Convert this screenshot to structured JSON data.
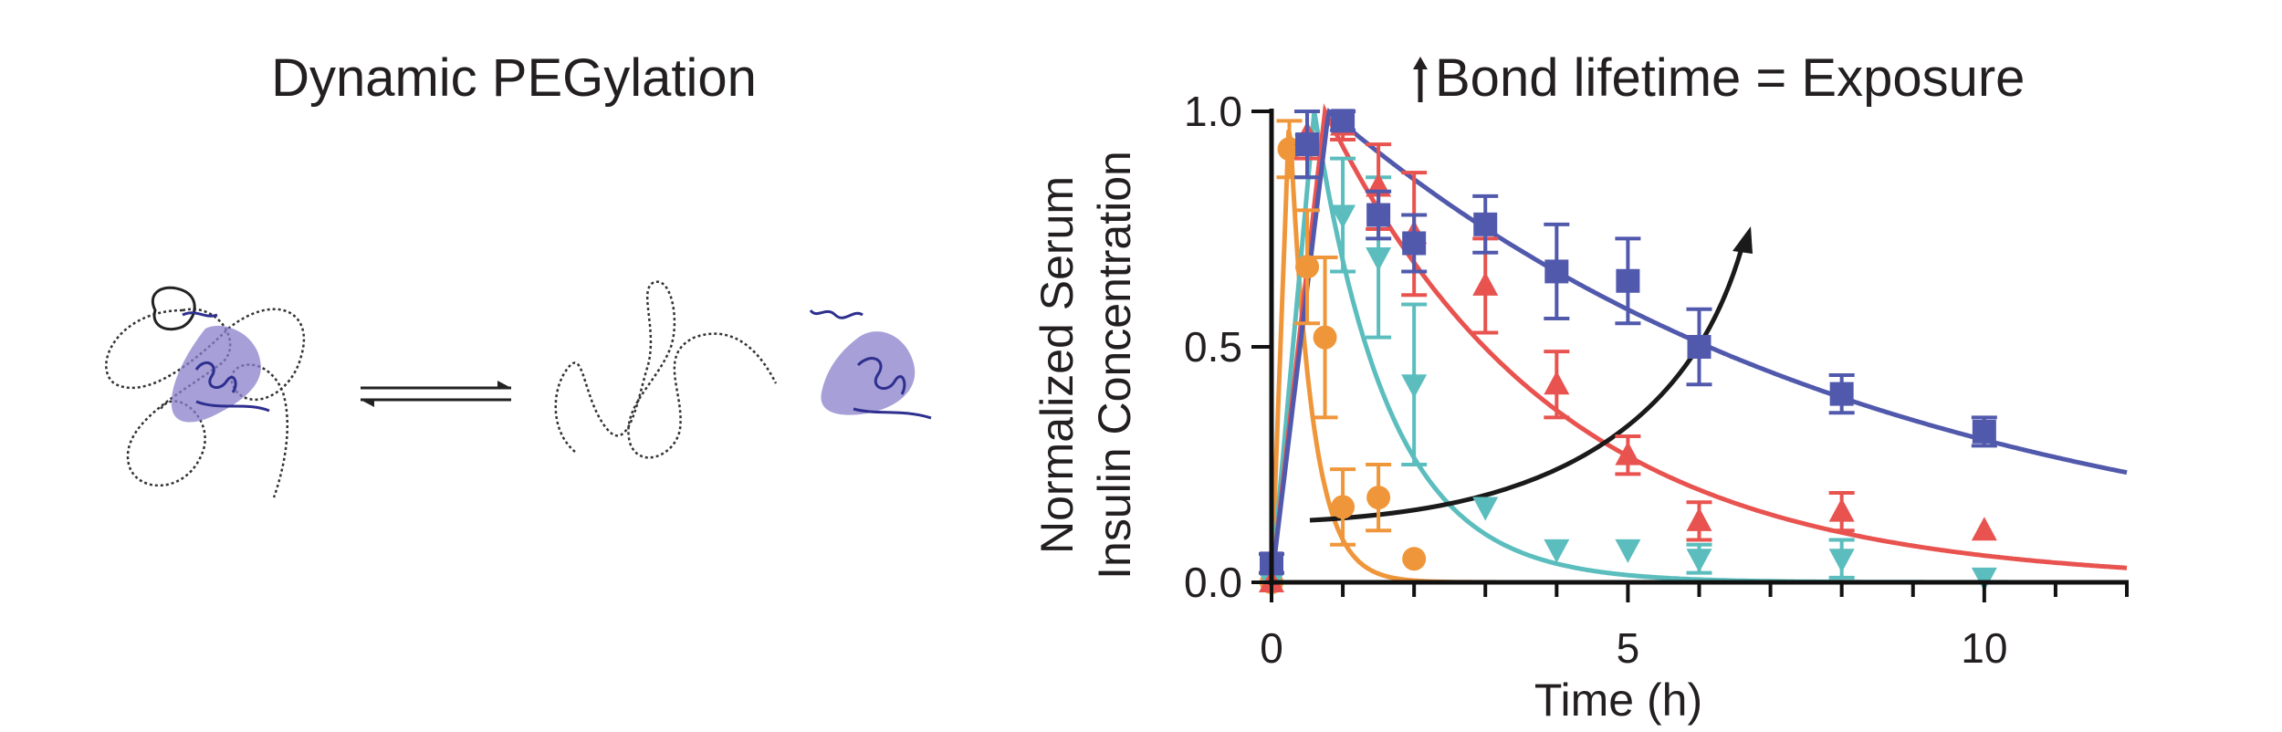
{
  "schematic": {
    "title": "Dynamic PEGylation"
  },
  "chart_data": {
    "type": "scatter",
    "title": "Bond lifetime = Exposure",
    "xlabel": "Time (h)",
    "ylabel_line1": "Normalized  Serum",
    "ylabel_line2": "Insulin Concentration",
    "xlim": [
      0,
      12
    ],
    "ylim": [
      0,
      1
    ],
    "xticks": [
      0,
      5,
      10
    ],
    "yticks": [
      "0.0",
      "0.5",
      "1.0"
    ],
    "grid": false,
    "series": [
      {
        "marker": "circle",
        "color": "#f0963a",
        "points": [
          {
            "x": 0,
            "y": 0.0,
            "err": 0
          },
          {
            "x": 0.25,
            "y": 0.92,
            "err": 0.06
          },
          {
            "x": 0.5,
            "y": 0.67,
            "err": 0.12
          },
          {
            "x": 0.75,
            "y": 0.52,
            "err": 0.17
          },
          {
            "x": 1,
            "y": 0.16,
            "err": 0.08
          },
          {
            "x": 1.5,
            "y": 0.18,
            "err": 0.07
          },
          {
            "x": 2,
            "y": 0.05,
            "err": 0
          }
        ],
        "fit": {
          "peak_x": 0.25,
          "k": 3.2
        }
      },
      {
        "marker": "triangle-down",
        "color": "#5bbdbd",
        "points": [
          {
            "x": 0,
            "y": 0.0,
            "err": 0
          },
          {
            "x": 0.5,
            "y": 0.93,
            "err": 0.07
          },
          {
            "x": 1,
            "y": 0.78,
            "err": 0.12
          },
          {
            "x": 1.5,
            "y": 0.69,
            "err": 0.17
          },
          {
            "x": 2,
            "y": 0.42,
            "err": 0.17
          },
          {
            "x": 3,
            "y": 0.16,
            "err": 0
          },
          {
            "x": 4,
            "y": 0.07,
            "err": 0
          },
          {
            "x": 5,
            "y": 0.07,
            "err": 0
          },
          {
            "x": 6,
            "y": 0.05,
            "err": 0.03
          },
          {
            "x": 8,
            "y": 0.05,
            "err": 0.04
          },
          {
            "x": 10,
            "y": 0.01,
            "err": 0
          }
        ],
        "fit": {
          "peak_x": 0.6,
          "k": 0.95
        }
      },
      {
        "marker": "triangle-up",
        "color": "#e8534f",
        "points": [
          {
            "x": 0,
            "y": 0.0,
            "err": 0
          },
          {
            "x": 0.5,
            "y": 0.95,
            "err": 0.05
          },
          {
            "x": 1,
            "y": 0.97,
            "err": 0.03
          },
          {
            "x": 1.5,
            "y": 0.84,
            "err": 0.09
          },
          {
            "x": 2,
            "y": 0.74,
            "err": 0.13
          },
          {
            "x": 3,
            "y": 0.63,
            "err": 0.1
          },
          {
            "x": 4,
            "y": 0.42,
            "err": 0.07
          },
          {
            "x": 5,
            "y": 0.27,
            "err": 0.04
          },
          {
            "x": 6,
            "y": 0.13,
            "err": 0.04
          },
          {
            "x": 8,
            "y": 0.15,
            "err": 0.04
          },
          {
            "x": 10,
            "y": 0.11,
            "err": 0
          }
        ],
        "fit": {
          "peak_x": 0.75,
          "k": 0.31
        }
      },
      {
        "marker": "square",
        "color": "#5159ad",
        "points": [
          {
            "x": 0,
            "y": 0.04,
            "err": 0.02
          },
          {
            "x": 0.5,
            "y": 0.93,
            "err": 0.07
          },
          {
            "x": 1,
            "y": 0.98,
            "err": 0.02
          },
          {
            "x": 1.5,
            "y": 0.78,
            "err": 0.05
          },
          {
            "x": 2,
            "y": 0.72,
            "err": 0.06
          },
          {
            "x": 3,
            "y": 0.76,
            "err": 0.06
          },
          {
            "x": 4,
            "y": 0.66,
            "err": 0.1
          },
          {
            "x": 5,
            "y": 0.64,
            "err": 0.09
          },
          {
            "x": 6,
            "y": 0.5,
            "err": 0.08
          },
          {
            "x": 8,
            "y": 0.4,
            "err": 0.04
          },
          {
            "x": 10,
            "y": 0.32,
            "err": 0.03
          }
        ],
        "fit": {
          "peak_x": 0.8,
          "k": 0.13
        }
      }
    ]
  }
}
